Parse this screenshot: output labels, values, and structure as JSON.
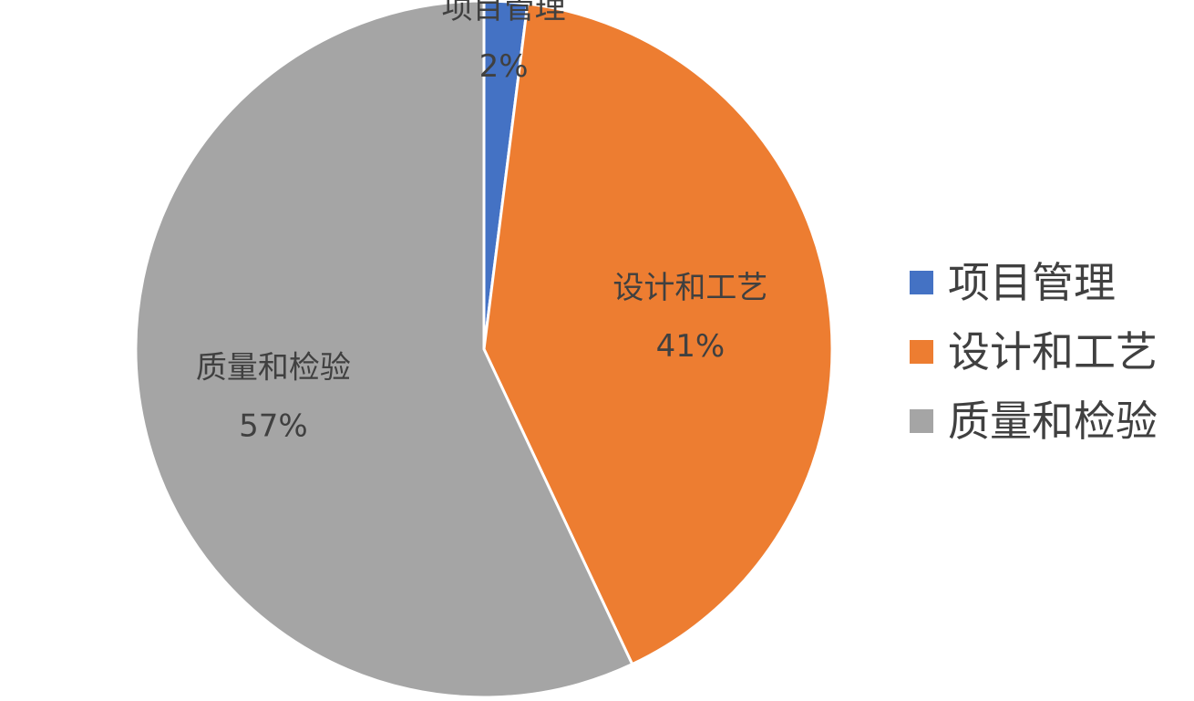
{
  "chart_data": {
    "type": "pie",
    "categories": [
      "项目管理",
      "设计和工艺",
      "质量和检验"
    ],
    "values": [
      2,
      41,
      57
    ],
    "value_labels": [
      "2%",
      "41%",
      "57%"
    ],
    "colors": [
      "#4472C4",
      "#ED7D31",
      "#A5A5A5"
    ],
    "start_angle": "12 o'clock",
    "direction": "clockwise",
    "legend_position": "right"
  }
}
